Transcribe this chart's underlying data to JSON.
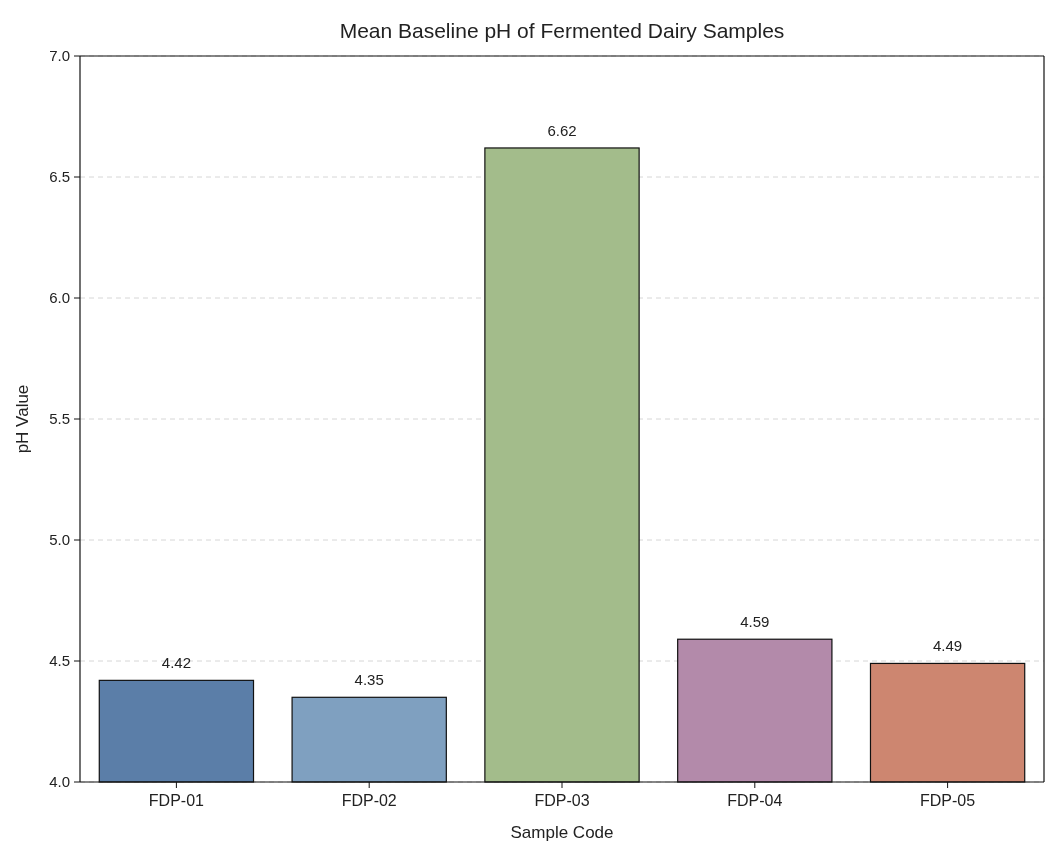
{
  "chart_data": {
    "type": "bar",
    "title": "Mean Baseline pH of Fermented Dairy Samples",
    "xlabel": "Sample Code",
    "ylabel": "pH Value",
    "categories": [
      "FDP-01",
      "FDP-02",
      "FDP-03",
      "FDP-04",
      "FDP-05"
    ],
    "values": [
      4.42,
      4.35,
      6.62,
      4.59,
      4.49
    ],
    "colors": [
      "#5b7ea8",
      "#7fa0c0",
      "#a3bc8b",
      "#b38aaa",
      "#cd8670"
    ],
    "ylim": [
      4.0,
      7.0
    ],
    "yticks": [
      {
        "value": 4,
        "label": "4.0"
      },
      {
        "value": 4.5,
        "label": "4.5"
      },
      {
        "value": 5,
        "label": "5.0"
      },
      {
        "value": 5.5,
        "label": "5.5"
      },
      {
        "value": 6,
        "label": "6.0"
      },
      {
        "value": 6.5,
        "label": "6.5"
      },
      {
        "value": 7,
        "label": "7.0"
      }
    ],
    "grid": "y",
    "data_labels": true
  }
}
